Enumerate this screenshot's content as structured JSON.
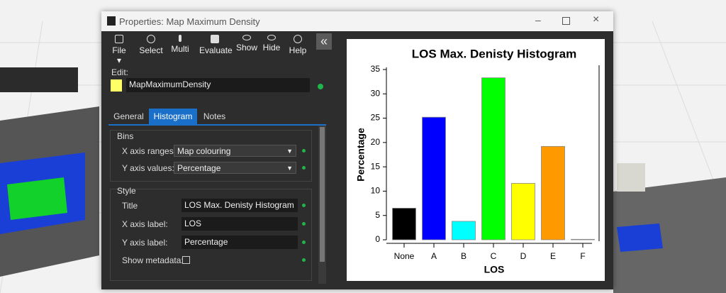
{
  "window": {
    "title": "Properties: Map Maximum Density"
  },
  "toolbar": [
    {
      "label": "File"
    },
    {
      "label": "Select"
    },
    {
      "label": "Multi"
    },
    {
      "label": "Evaluate"
    },
    {
      "label": "Show"
    },
    {
      "label": "Hide"
    },
    {
      "label": "Help"
    }
  ],
  "edit": {
    "label": "Edit:",
    "value": "MapMaximumDensity"
  },
  "tabs": [
    "General",
    "Histogram",
    "Notes"
  ],
  "bins": {
    "title": "Bins",
    "rows": [
      {
        "label": "X axis ranges:",
        "value": "Map colouring"
      },
      {
        "label": "Y axis values:",
        "value": "Percentage"
      }
    ]
  },
  "style": {
    "title": "Style",
    "rows": [
      {
        "label": "Title",
        "value": "LOS Max. Denisty Histogram"
      },
      {
        "label": "X axis label:",
        "value": "LOS"
      },
      {
        "label": "Y axis label:",
        "value": "Percentage"
      }
    ],
    "checkbox": "Show metadata:"
  },
  "chart_data": {
    "type": "bar",
    "title": "LOS Max. Denisty Histogram",
    "x_label": "LOS",
    "y_label": "Percentage",
    "categories": [
      "None",
      "A",
      "B",
      "C",
      "D",
      "E",
      "F"
    ],
    "values": [
      6.5,
      25.2,
      3.8,
      33.3,
      11.6,
      19.2,
      0.1
    ],
    "colors": [
      "#000000",
      "#0000ff",
      "#00ffff",
      "#00ff00",
      "#ffff00",
      "#ff9900",
      "#ff0000"
    ],
    "ylim": [
      0,
      35
    ],
    "yticks": [
      0,
      5,
      10,
      15,
      20,
      25,
      30,
      35
    ]
  }
}
